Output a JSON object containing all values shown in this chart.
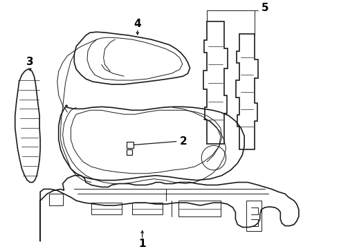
{
  "bg_color": "#ffffff",
  "line_color": "#1a1a1a",
  "figsize": [
    4.9,
    3.6
  ],
  "dpi": 100,
  "label_fontsize": 10,
  "label_color": "#000000",
  "label_bold": true
}
